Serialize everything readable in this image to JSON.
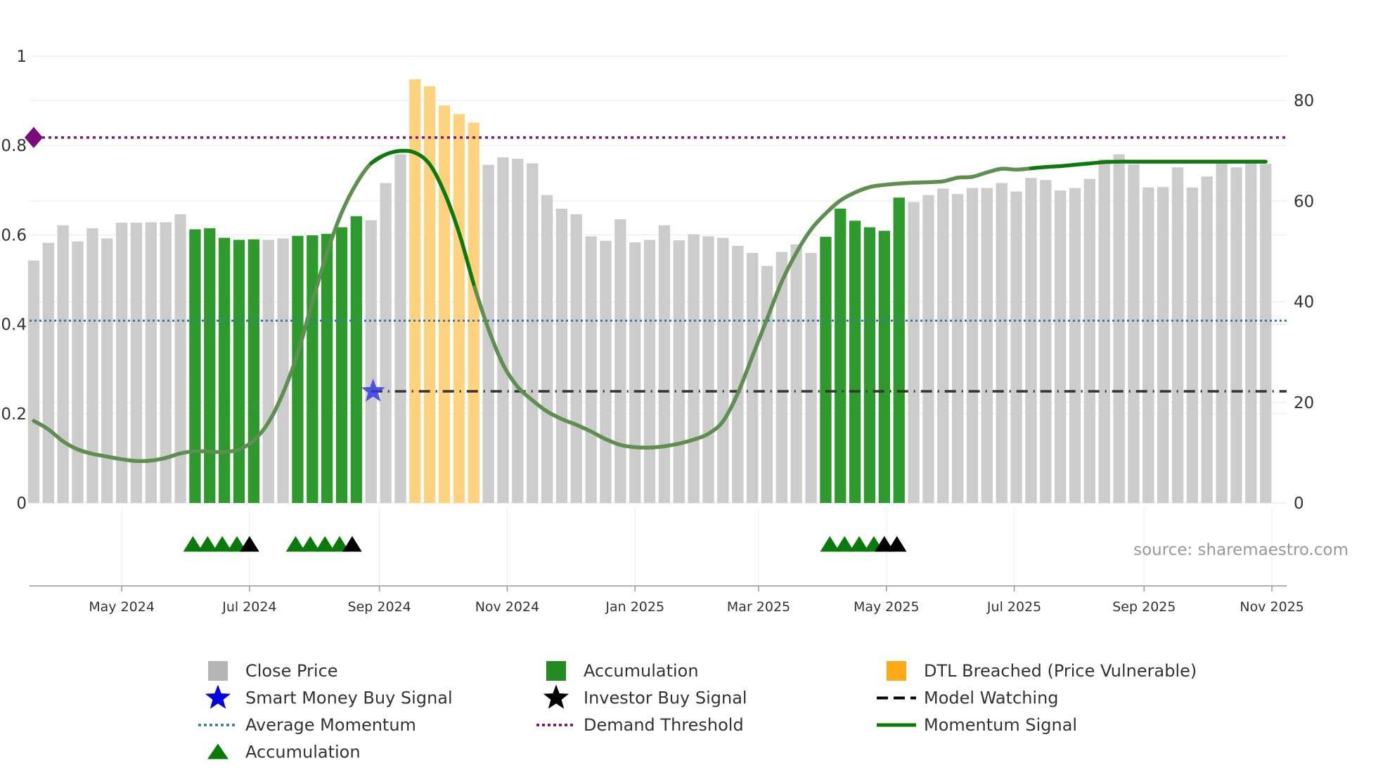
{
  "chart_data": {
    "type": "bar",
    "title": "",
    "xlabel": "",
    "ylabel_left": "",
    "ylabel_right": "",
    "left_axis": {
      "range": [
        0,
        1.05
      ],
      "ticks": [
        0,
        0.2,
        0.4,
        0.6,
        0.8,
        1
      ],
      "tick_labels": [
        "0",
        "0.2",
        "0.4",
        "0.6",
        "0.8",
        "1"
      ]
    },
    "right_axis": {
      "range": [
        0,
        89.25
      ],
      "ticks": [
        0,
        20,
        40,
        60,
        80
      ],
      "tick_labels": [
        "0",
        "20",
        "40",
        "60",
        "80"
      ]
    },
    "x_axis": {
      "start_date": "2024-03-18",
      "end_date": "2025-11-08",
      "ticks": [
        {
          "date": "2024-05-01",
          "label": "May 2024"
        },
        {
          "date": "2024-07-01",
          "label": "Jul 2024"
        },
        {
          "date": "2024-09-01",
          "label": "Sep 2024"
        },
        {
          "date": "2024-11-01",
          "label": "Nov 2024"
        },
        {
          "date": "2025-01-01",
          "label": "Jan 2025"
        },
        {
          "date": "2025-03-01",
          "label": "Mar 2025"
        },
        {
          "date": "2025-05-01",
          "label": "May 2025"
        },
        {
          "date": "2025-07-01",
          "label": "Jul 2025"
        },
        {
          "date": "2025-09-01",
          "label": "Sep 2025"
        },
        {
          "date": "2025-11-01",
          "label": "Nov 2025"
        }
      ]
    },
    "bar_start_date": "2024-03-20",
    "bar_step_days": 7,
    "series": [
      {
        "name": "Close Price",
        "axis": "right",
        "values": [
          48.2,
          51.7,
          55.2,
          52.0,
          54.6,
          52.6,
          55.7,
          55.7,
          55.8,
          55.8,
          57.4,
          54.4,
          54.6,
          52.7,
          52.3,
          52.4,
          52.3,
          52.6,
          53.1,
          53.2,
          53.5,
          54.8,
          57.0,
          56.2,
          63.6,
          69.3,
          84.2,
          82.8,
          79.0,
          77.3,
          75.6,
          67.2,
          68.7,
          68.4,
          67.5,
          61.2,
          58.5,
          57.4,
          53.0,
          52.1,
          56.4,
          51.8,
          52.3,
          55.2,
          52.2,
          53.4,
          53.0,
          52.7,
          51.1,
          49.7,
          47.1,
          49.9,
          51.4,
          49.7,
          52.9,
          58.5,
          56.1,
          54.8,
          54.1,
          60.7,
          59.8,
          61.2,
          62.5,
          61.4,
          62.6,
          62.6,
          63.6,
          61.9,
          64.6,
          64.2,
          62.1,
          62.6,
          64.4,
          68.3,
          69.3,
          67.3,
          62.7,
          62.8,
          66.7,
          62.7,
          64.9,
          68.2,
          66.7,
          67.6,
          67.4
        ],
        "color": "#cccccc"
      },
      {
        "name": "Momentum Signal",
        "axis": "left",
        "values": [
          0.184,
          0.165,
          0.138,
          0.12,
          0.11,
          0.104,
          0.098,
          0.094,
          0.095,
          0.101,
          0.111,
          0.116,
          0.115,
          0.114,
          0.12,
          0.14,
          0.18,
          0.246,
          0.335,
          0.45,
          0.56,
          0.65,
          0.715,
          0.76,
          0.78,
          0.788,
          0.784,
          0.758,
          0.695,
          0.605,
          0.49,
          0.39,
          0.31,
          0.26,
          0.23,
          0.205,
          0.188,
          0.175,
          0.16,
          0.143,
          0.13,
          0.125,
          0.124,
          0.127,
          0.133,
          0.142,
          0.155,
          0.183,
          0.245,
          0.328,
          0.412,
          0.495,
          0.56,
          0.612,
          0.648,
          0.677,
          0.695,
          0.707,
          0.712,
          0.715,
          0.717,
          0.718,
          0.72,
          0.728,
          0.73,
          0.74,
          0.748,
          0.746,
          0.749,
          0.752,
          0.754,
          0.757,
          0.76,
          0.763,
          0.764,
          0.764,
          0.764,
          0.764,
          0.764,
          0.764,
          0.764,
          0.764,
          0.764,
          0.764,
          0.764
        ],
        "color": "#0a7a0a"
      }
    ],
    "bar_categories": {
      "accumulation_indices": [
        11,
        12,
        13,
        14,
        15,
        18,
        19,
        20,
        21,
        22,
        54,
        55,
        56,
        57,
        58,
        59
      ],
      "dtl_breached_indices": [
        26,
        27,
        28,
        29,
        30
      ]
    },
    "momentum_strong_segments": [
      [
        23,
        30
      ],
      [
        68,
        84
      ]
    ],
    "reference_lines": {
      "average_momentum": 0.408,
      "demand_threshold": 0.818,
      "model_watching": 0.25,
      "model_watching_start_index": 23
    },
    "demand_threshold_marker": {
      "date": "2024-03-20",
      "value": 0.818
    },
    "smart_money_buy_signal": {
      "date": "2024-08-29",
      "value": 0.25
    },
    "triangle_markers": [
      {
        "date": "2024-06-04",
        "type": "accumulation"
      },
      {
        "date": "2024-06-11",
        "type": "accumulation"
      },
      {
        "date": "2024-06-18",
        "type": "accumulation"
      },
      {
        "date": "2024-06-25",
        "type": "accumulation"
      },
      {
        "date": "2024-07-01",
        "type": "investor"
      },
      {
        "date": "2024-07-23",
        "type": "accumulation"
      },
      {
        "date": "2024-07-30",
        "type": "accumulation"
      },
      {
        "date": "2024-08-06",
        "type": "accumulation"
      },
      {
        "date": "2024-08-13",
        "type": "accumulation"
      },
      {
        "date": "2024-08-19",
        "type": "investor"
      },
      {
        "date": "2025-04-04",
        "type": "accumulation"
      },
      {
        "date": "2025-04-11",
        "type": "accumulation"
      },
      {
        "date": "2025-04-18",
        "type": "accumulation"
      },
      {
        "date": "2025-04-25",
        "type": "accumulation"
      },
      {
        "date": "2025-04-30",
        "type": "investor"
      },
      {
        "date": "2025-05-06",
        "type": "investor"
      }
    ],
    "legend": [
      {
        "label": "Close Price",
        "symbol": "square",
        "color": "#b5b5b5"
      },
      {
        "label": "Accumulation",
        "symbol": "square",
        "color": "#228b22"
      },
      {
        "label": "DTL Breached (Price Vulnerable)",
        "symbol": "square",
        "color": "#ffa918"
      },
      {
        "label": "Smart Money Buy Signal",
        "symbol": "star",
        "color": "#0000dd"
      },
      {
        "label": "Investor Buy Signal",
        "symbol": "star",
        "color": "#000000"
      },
      {
        "label": "Model Watching",
        "symbol": "dash",
        "color": "#000000"
      },
      {
        "label": "Average Momentum",
        "symbol": "dotted",
        "color": "#3b7aa0"
      },
      {
        "label": "Demand Threshold",
        "symbol": "dotted",
        "color": "#6b0a6b"
      },
      {
        "label": "Momentum Signal",
        "symbol": "line",
        "color": "#0a7a0a"
      },
      {
        "label": "Accumulation",
        "symbol": "triangle",
        "color": "#0a7a0a"
      }
    ],
    "source_text": "source: sharemaestro.com",
    "legend_placement": "bottom"
  },
  "colors": {
    "bar_close": "#cccccc",
    "bar_accumulation": "#2e9a2e",
    "bar_dtl": "#ffd27f",
    "momentum_line": "#0a7a0a",
    "momentum_line_overlay": "#5e8f50",
    "average_momentum": "#3b7aa0",
    "demand_threshold": "#7a1a7a",
    "model_watching": "#333333",
    "smart_money_star": "#3a3ae0",
    "triangle_accumulation": "#0a7a0a",
    "triangle_investor": "#000000",
    "grid": "#ececec",
    "axis": "#999999",
    "tick_text": "#333333",
    "source_text": "#999999"
  }
}
